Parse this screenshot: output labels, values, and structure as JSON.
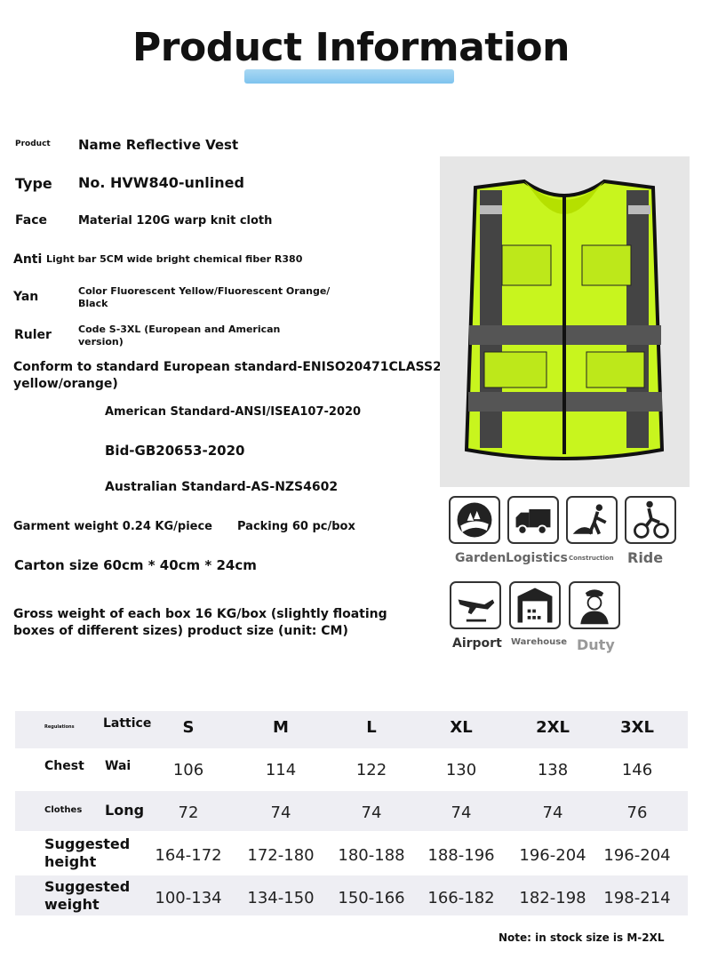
{
  "title": "Product Information",
  "specs": [
    {
      "label": "Product",
      "value": "Name Reflective Vest"
    },
    {
      "label": "Type",
      "value": "No. HVW840-unlined"
    },
    {
      "label": "Face",
      "value": "Material 120G warp knit cloth"
    },
    {
      "label": "Anti",
      "value": "Light bar 5CM wide bright chemical fiber R380"
    },
    {
      "label": "Yan",
      "value": "Color Fluorescent Yellow/Fluorescent Orange/ Black"
    },
    {
      "label": "Ruler",
      "value": "Code S-3XL (European and American version)"
    }
  ],
  "standards": {
    "conform": "Conform to standard European standard-ENISO20471CLASS2 ( yellow/orange)",
    "american": "American Standard-ANSI/ISEA107-2020",
    "bid": "Bid-GB20653-2020",
    "australian": "Australian Standard-AS-NZS4602"
  },
  "garment_weight": "Garment weight 0.24 KG/piece",
  "packing": "Packing 60 pc/box",
  "carton_size": "Carton size 60cm * 40cm * 24cm",
  "gross_weight": "Gross weight of each box 16 KG/box (slightly floating boxes of different sizes) product size (unit: CM)",
  "uses": [
    {
      "icon": "garden-icon",
      "label": "Garden"
    },
    {
      "icon": "truck-icon",
      "label": "Logistics"
    },
    {
      "icon": "construction-worker-icon",
      "label": "Construction"
    },
    {
      "icon": "cyclist-icon",
      "label": "Ride"
    },
    {
      "icon": "airplane-icon",
      "label": "Airport"
    },
    {
      "icon": "warehouse-icon",
      "label": "Warehouse"
    },
    {
      "icon": "officer-icon",
      "label": "Duty"
    }
  ],
  "size_table": {
    "header": {
      "a": "Regulations",
      "b": "Lattice",
      "sizes": [
        "S",
        "M",
        "L",
        "XL",
        "2XL",
        "3XL"
      ]
    },
    "rows": [
      {
        "a": "Chest",
        "b": "Wai",
        "values": [
          "106",
          "114",
          "122",
          "130",
          "138",
          "146"
        ]
      },
      {
        "a": "Clothes",
        "b": "Long",
        "values": [
          "72",
          "74",
          "74",
          "74",
          "74",
          "76"
        ]
      },
      {
        "a": "Suggested height",
        "b": "",
        "values": [
          "164-172",
          "172-180",
          "180-188",
          "188-196",
          "196-204",
          "196-204"
        ]
      },
      {
        "a": "Suggested weight",
        "b": "",
        "values": [
          "100-134",
          "134-150",
          "150-166",
          "166-182",
          "182-198",
          "198-214"
        ]
      }
    ]
  },
  "note": "Note: in stock size is M-2XL",
  "colors": {
    "vest": "#c8f51e",
    "reflective": "#555555",
    "underline": "#8ecbf0"
  }
}
